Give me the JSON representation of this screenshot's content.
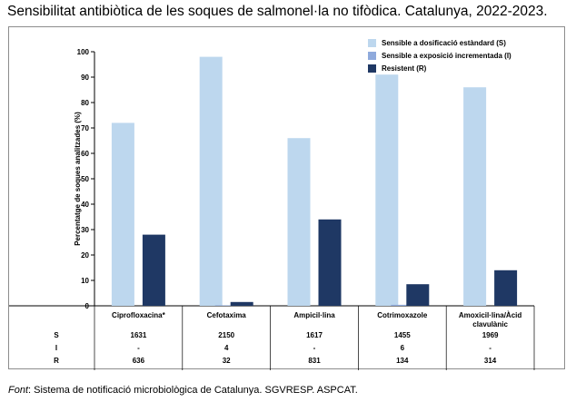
{
  "title": "Sensibilitat antibiòtica de les soques de salmonel·la no tifòdica. Catalunya, 2022-2023.",
  "footer": {
    "prefix": "Font",
    "text": ": Sistema de notificació microbiològica de Catalunya. SGVRESP. ASPCAT."
  },
  "colors": {
    "S": "#bdd7ee",
    "I": "#8faadc",
    "R": "#1f3864"
  },
  "chart_data": {
    "type": "bar",
    "ylabel": "Percentatge de soques analitzades (%)",
    "ylim": [
      0,
      100
    ],
    "yticks": [
      0,
      10,
      20,
      30,
      40,
      50,
      60,
      70,
      80,
      90,
      100
    ],
    "categories": [
      "Ciprofloxacina*",
      "Cefotaxima",
      "Ampicil·lina",
      "Cotrimoxazole",
      "Amoxicil·lina/Àcid clavulànic"
    ],
    "series": [
      {
        "name": "Sensible a dosificació estàndard (S)",
        "key": "S",
        "values": [
          72,
          98,
          66,
          91,
          86
        ]
      },
      {
        "name": "Sensible a exposició incrementada (I)",
        "key": "I",
        "values": [
          0,
          0.2,
          0,
          0.4,
          0
        ]
      },
      {
        "name": "Resistent (R)",
        "key": "R",
        "values": [
          28,
          1.5,
          34,
          8.5,
          14
        ]
      }
    ],
    "legend_position": "top-right",
    "grid": false,
    "table": {
      "row_labels": [
        "S",
        "I",
        "R"
      ],
      "rows": [
        [
          "1631",
          "2150",
          "1617",
          "1455",
          "1969"
        ],
        [
          "-",
          "4",
          "-",
          "6",
          "-"
        ],
        [
          "636",
          "32",
          "831",
          "134",
          "314"
        ]
      ]
    }
  }
}
